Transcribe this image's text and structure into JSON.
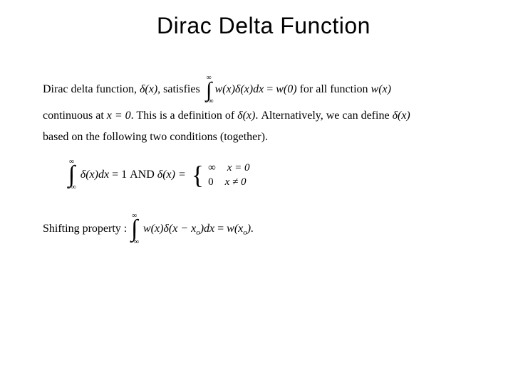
{
  "colors": {
    "background": "#ffffff",
    "text": "#000000"
  },
  "slide": {
    "title": "Dirac Delta Function",
    "title_fontsize": 32,
    "body_font": "Times New Roman",
    "body_fontsize": 16
  },
  "def": {
    "lead_a": "Dirac delta function, ",
    "delta_x": "δ(x)",
    "lead_b": ", satisfies ",
    "int_upper": "∞",
    "int_lower": "−∞",
    "integrand": "w(x)δ(x)dx",
    "eq": " = ",
    "rhs": "w(0)",
    "trail": " for all function ",
    "wx": "w(x)",
    "line2_a": "continuous at ",
    "x0": "x = 0",
    "line2_b": ".  This is a definition of ",
    "line2_c": ".   Alternatively, we can define ",
    "line3": "based on the following two conditions (together)."
  },
  "cond": {
    "int_upper": "∞",
    "int_lower": "−∞",
    "integrand": "δ(x)dx",
    "eq1": " = 1",
    "and": "   AND   ",
    "delta_x": "δ(x) = ",
    "case1_val": "∞",
    "case1_cond": "x = 0",
    "case2_val": "0",
    "case2_cond": "x ≠ 0"
  },
  "shift": {
    "label": "Shifting property : ",
    "int_upper": "∞",
    "int_lower": "−∞",
    "integrand_a": "w(x)δ(x − x",
    "sub_o": "o",
    "integrand_b": ")dx",
    "eq": " = ",
    "rhs_a": "w(x",
    "rhs_b": ")."
  }
}
